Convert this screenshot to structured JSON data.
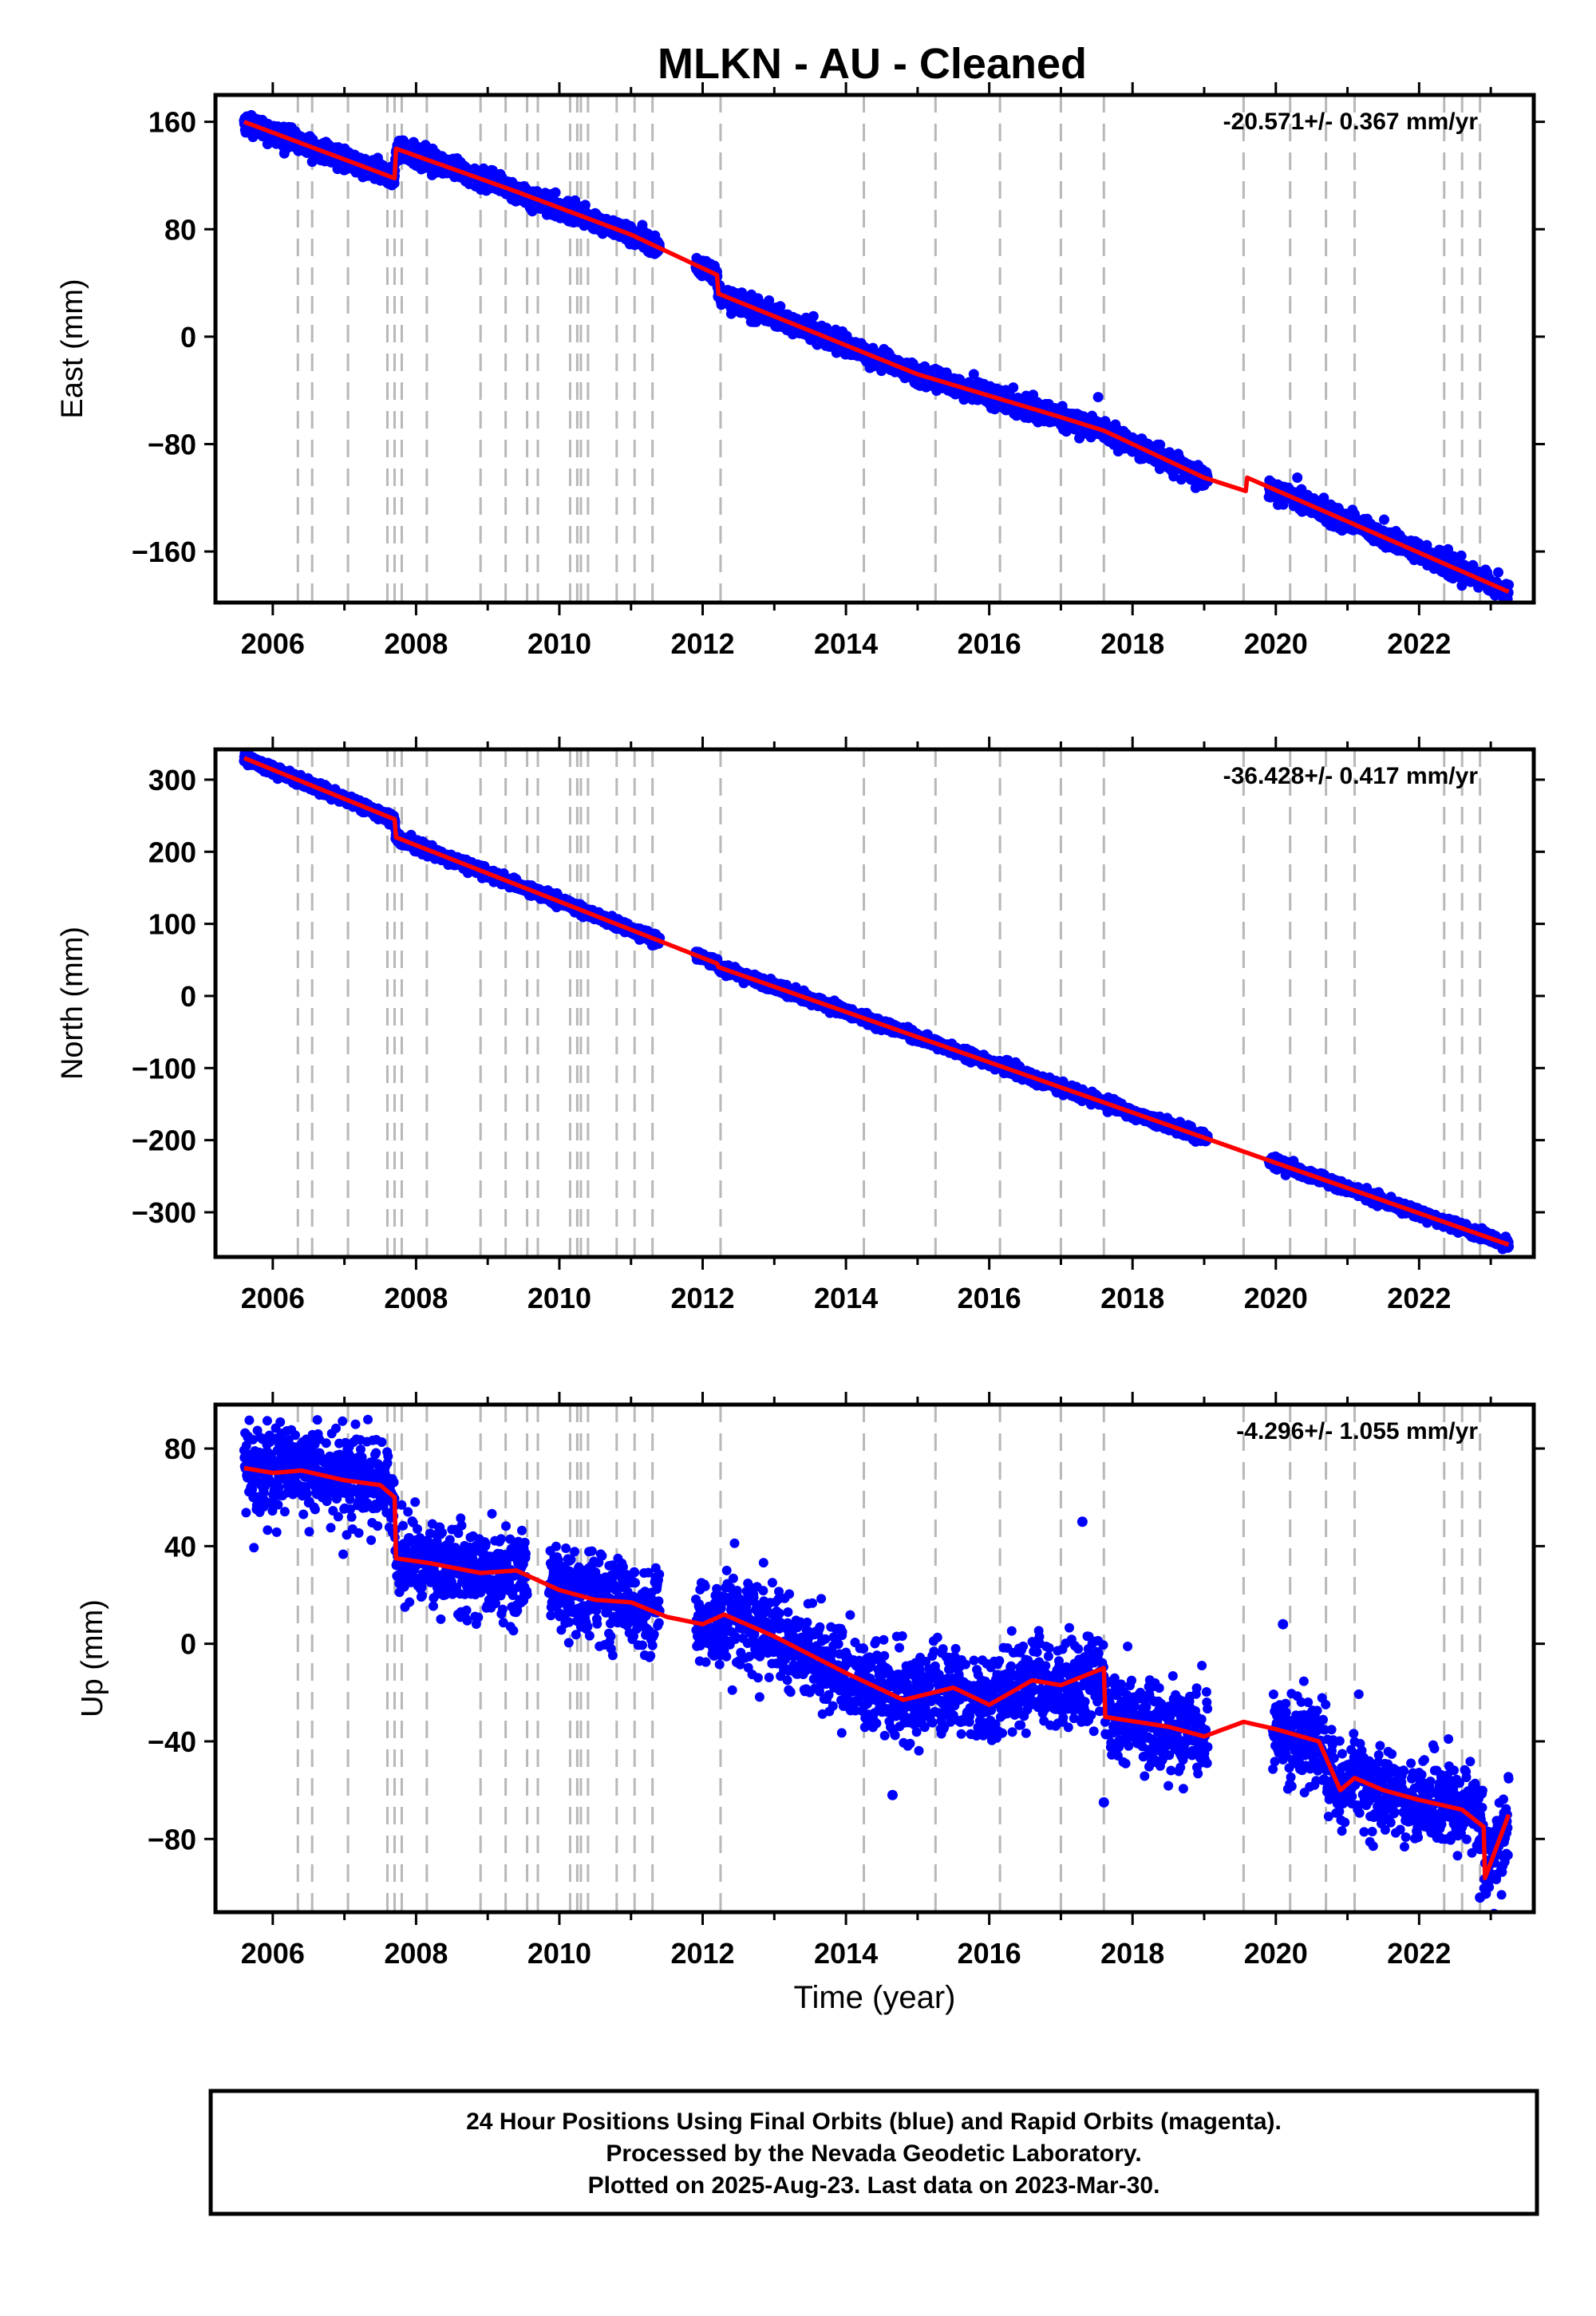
{
  "title": "MLKN  - AU - Cleaned",
  "chart_data": [
    {
      "type": "scatter",
      "component": "East",
      "ylabel": "East (mm)",
      "xlabel": "",
      "rate_label": "-20.571+/- 0.367 mm/yr",
      "ylim": [
        -198,
        180
      ],
      "yticks": [
        160,
        80,
        0,
        -80,
        -160
      ],
      "xlim": [
        2005.2,
        2023.6
      ],
      "xticks": [
        2006,
        2008,
        2010,
        2012,
        2014,
        2016,
        2018,
        2020,
        2022
      ],
      "points_color": "#0000ff",
      "model_color": "#ff0000",
      "equipment_change_lines": [
        2006.35,
        2006.55,
        2007.05,
        2007.6,
        2007.7,
        2007.8,
        2008.15,
        2008.9,
        2009.25,
        2009.55,
        2009.7,
        2010.15,
        2010.25,
        2010.3,
        2010.4,
        2010.8,
        2011.05,
        2011.3,
        2012.25,
        2014.25,
        2015.25,
        2016.15,
        2017.0,
        2017.6,
        2019.55,
        2020.2,
        2020.7,
        2021.1,
        2022.35,
        2022.6,
        2022.85
      ],
      "model": {
        "t": [
          2005.6,
          2007.7,
          2007.72,
          2009.4,
          2011.0,
          2012.2,
          2012.22,
          2015.0,
          2017.0,
          2017.6,
          2019.0,
          2019.58,
          2019.6,
          2023.25
        ],
        "y": [
          160,
          118,
          140,
          108,
          76,
          46,
          32,
          -28,
          -60,
          -70,
          -105,
          -115,
          -105,
          -190
        ]
      },
      "noise": 3.5,
      "gaps": [
        [
          2011.4,
          2011.9
        ],
        [
          2019.05,
          2019.9
        ]
      ],
      "outliers": [
        [
          2017.52,
          -45
        ],
        [
          2020.3,
          -105
        ]
      ]
    },
    {
      "type": "scatter",
      "component": "North",
      "ylabel": "North (mm)",
      "xlabel": "",
      "rate_label": "-36.428+/- 0.417 mm/yr",
      "ylim": [
        -362,
        342
      ],
      "yticks": [
        300,
        200,
        100,
        0,
        -100,
        -200,
        -300
      ],
      "xlim": [
        2005.2,
        2023.6
      ],
      "xticks": [
        2006,
        2008,
        2010,
        2012,
        2014,
        2016,
        2018,
        2020,
        2022
      ],
      "points_color": "#0000ff",
      "model_color": "#ff0000",
      "equipment_change_lines": [
        2006.35,
        2006.55,
        2007.05,
        2007.6,
        2007.7,
        2007.8,
        2008.15,
        2008.9,
        2009.25,
        2009.55,
        2009.7,
        2010.15,
        2010.25,
        2010.3,
        2010.4,
        2010.8,
        2011.05,
        2011.3,
        2012.25,
        2014.25,
        2015.25,
        2016.15,
        2017.0,
        2017.6,
        2019.55,
        2020.2,
        2020.7,
        2021.1,
        2022.35,
        2022.6,
        2022.85
      ],
      "model": {
        "t": [
          2005.6,
          2007.7,
          2007.72,
          2012.2,
          2012.22,
          2023.25
        ],
        "y": [
          330,
          245,
          220,
          45,
          40,
          -345
        ]
      },
      "noise": 3.5,
      "gaps": [
        [
          2011.4,
          2011.9
        ],
        [
          2019.05,
          2019.9
        ]
      ],
      "outliers": []
    },
    {
      "type": "scatter",
      "component": "Up",
      "ylabel": "Up (mm)",
      "xlabel": "Time (year)",
      "rate_label": "-4.296+/- 1.055 mm/yr",
      "ylim": [
        -110,
        98
      ],
      "yticks": [
        80,
        40,
        0,
        -40,
        -80
      ],
      "xlim": [
        2005.2,
        2023.6
      ],
      "xticks": [
        2006,
        2008,
        2010,
        2012,
        2014,
        2016,
        2018,
        2020,
        2022
      ],
      "points_color": "#0000ff",
      "model_color": "#ff0000",
      "equipment_change_lines": [
        2006.35,
        2006.55,
        2007.05,
        2007.6,
        2007.7,
        2007.8,
        2008.15,
        2008.9,
        2009.25,
        2009.55,
        2009.7,
        2010.15,
        2010.25,
        2010.3,
        2010.4,
        2010.8,
        2011.05,
        2011.3,
        2012.25,
        2014.25,
        2015.25,
        2016.15,
        2017.0,
        2017.6,
        2019.55,
        2020.2,
        2020.7,
        2021.1,
        2022.35,
        2022.6,
        2022.85
      ],
      "model": {
        "t": [
          2005.6,
          2006.0,
          2006.4,
          2007.0,
          2007.5,
          2007.7,
          2007.72,
          2008.2,
          2008.9,
          2009.4,
          2010.0,
          2010.5,
          2011.0,
          2011.5,
          2012.0,
          2012.3,
          2013.0,
          2014.0,
          2014.8,
          2015.5,
          2016.0,
          2016.6,
          2017.0,
          2017.6,
          2017.62,
          2018.5,
          2019.0,
          2019.55,
          2020.0,
          2020.6,
          2020.9,
          2021.1,
          2021.5,
          2022.0,
          2022.6,
          2022.9,
          2022.92,
          2023.25
        ],
        "y": [
          72,
          70,
          71,
          67,
          65,
          60,
          35,
          33,
          29,
          30,
          22,
          18,
          17,
          11,
          8,
          12,
          3,
          -12,
          -23,
          -18,
          -25,
          -15,
          -17,
          -10,
          -30,
          -34,
          -38,
          -32,
          -35,
          -40,
          -60,
          -55,
          -60,
          -64,
          -68,
          -75,
          -96,
          -70
        ]
      },
      "noise": 9,
      "gaps": [
        [
          2009.55,
          2009.85
        ],
        [
          2011.4,
          2011.9
        ],
        [
          2019.05,
          2019.95
        ]
      ],
      "outliers": [
        [
          2017.3,
          50
        ],
        [
          2017.6,
          -65
        ],
        [
          2022.85,
          -104
        ],
        [
          2020.1,
          8
        ],
        [
          2014.65,
          -62
        ]
      ]
    }
  ],
  "footer": {
    "line1": "24 Hour Positions Using Final Orbits (blue) and Rapid Orbits (magenta).",
    "line2": "Processed by the Nevada Geodetic Laboratory.",
    "line3": "Plotted on 2025-Aug-23. Last data on 2023-Mar-30."
  }
}
